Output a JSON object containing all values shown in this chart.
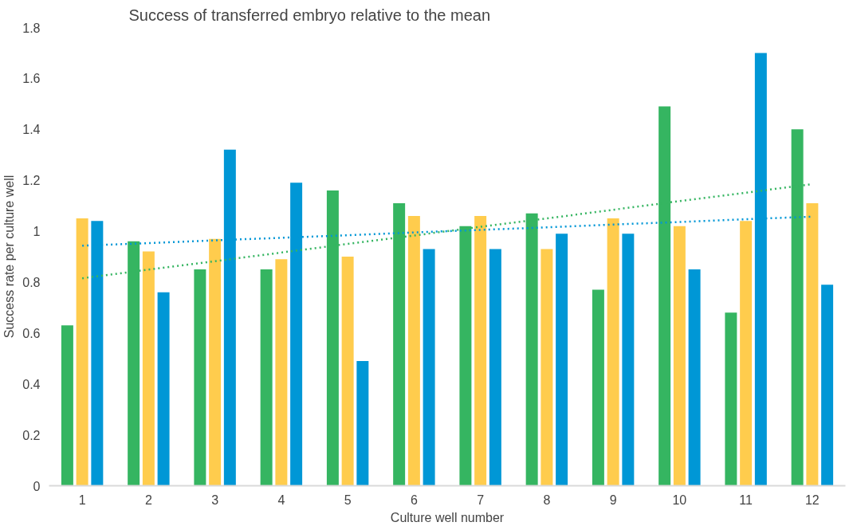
{
  "chart_data": {
    "type": "bar",
    "title": "Success of transferred embryo relative to the mean",
    "xlabel": "Culture well number",
    "ylabel": "Success rate per culture well",
    "x": [
      1,
      2,
      3,
      4,
      5,
      6,
      7,
      8,
      9,
      10,
      11,
      12
    ],
    "xlim": [
      0.5,
      12.5
    ],
    "xticks": [
      1,
      2,
      3,
      4,
      5,
      6,
      7,
      8,
      9,
      10,
      11,
      12
    ],
    "ylim": [
      0,
      1.8
    ],
    "yticks": [
      0,
      0.2,
      0.4,
      0.6,
      0.8,
      1,
      1.2,
      1.4,
      1.6,
      1.8
    ],
    "grid": false,
    "series": [
      {
        "color": "#35b561",
        "values": [
          0.63,
          0.96,
          0.85,
          0.85,
          1.16,
          1.11,
          1.02,
          1.07,
          0.77,
          1.49,
          0.68,
          1.4
        ]
      },
      {
        "color": "#ffcc4d",
        "values": [
          1.05,
          0.92,
          0.97,
          0.89,
          0.9,
          1.06,
          1.06,
          0.93,
          1.05,
          1.02,
          1.04,
          1.11
        ]
      },
      {
        "color": "#0097d6",
        "values": [
          1.04,
          0.76,
          1.32,
          1.19,
          0.49,
          0.93,
          0.93,
          0.99,
          0.99,
          0.85,
          1.7,
          0.79
        ]
      },
      {
        "type": "line",
        "line_style": "dotted",
        "color": "#35b561",
        "values": [
          0.815,
          0.849,
          0.882,
          0.916,
          0.95,
          0.983,
          1.017,
          1.05,
          1.084,
          1.118,
          1.151,
          1.185
        ]
      },
      {
        "type": "line",
        "line_style": "dotted",
        "color": "#0097d6",
        "values": [
          0.943,
          0.953,
          0.964,
          0.974,
          0.984,
          0.995,
          1.005,
          1.015,
          1.026,
          1.036,
          1.047,
          1.057
        ]
      }
    ]
  }
}
